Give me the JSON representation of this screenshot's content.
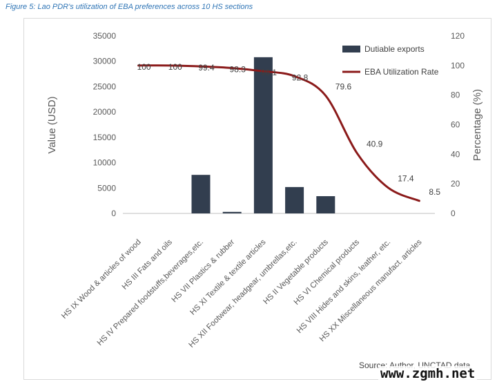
{
  "figure_title": "Figure 5: Lao PDR's utilization of EBA preferences across 10 HS sections",
  "source_text": "Source: Author, UNCTAD data",
  "watermark": "www.zgmh.net",
  "colors": {
    "bar": "#323e4f",
    "line": "#8b1a1a",
    "axis": "#bfbfbf",
    "text": "#595959"
  },
  "chart_data": {
    "type": "bar",
    "title": "",
    "categories": [
      "HS IX Wood & articles of wood",
      "HS III Fats and oils",
      "HS IV Prepared foodstuffs,beverages,etc.",
      "HS VII Plastics & rubber",
      "HS XI Textile & textile articles",
      "HS XII Footwear, headgear, umbrellas,etc.",
      "HS II Vegetable products",
      "HS VI Chemical products",
      "HS VIII Hides and skins, leather, etc.",
      "HS XX Miscellaneous manufact. articles"
    ],
    "series": [
      {
        "name": "Dutiable exports",
        "type": "bar",
        "axis": "left",
        "values": [
          0,
          0,
          7600,
          300,
          30800,
          5200,
          3400,
          0,
          0,
          0
        ]
      },
      {
        "name": "EBA Utilization Rate",
        "type": "line",
        "axis": "right",
        "values": [
          100,
          100,
          99.4,
          98.3,
          96.1,
          92.8,
          79.6,
          40.9,
          17.4,
          8.5
        ],
        "labels": [
          "100",
          "100",
          "99.4",
          "98.3",
          "96.1",
          "92.8",
          "79.6",
          "40.9",
          "17.4",
          "8.5"
        ]
      }
    ],
    "ylabel": "Value (USD)",
    "y2label": "Percentage (%)",
    "ylim": [
      0,
      35000
    ],
    "yticks": [
      "0",
      "5000",
      "10000",
      "15000",
      "20000",
      "25000",
      "30000",
      "35000"
    ],
    "y2lim": [
      0,
      120
    ],
    "y2ticks": [
      "0",
      "20",
      "40",
      "60",
      "80",
      "100",
      "120"
    ],
    "legend": "top-right",
    "grid": false
  }
}
